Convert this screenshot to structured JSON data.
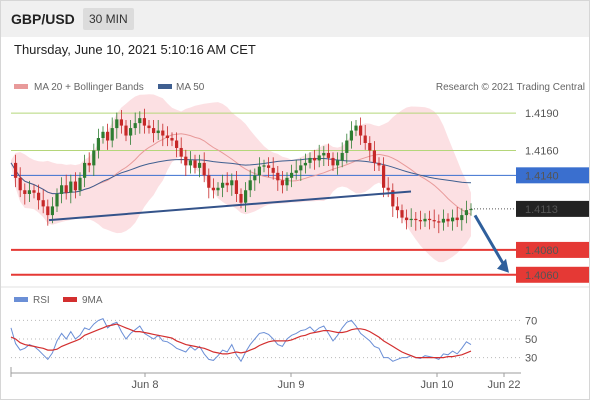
{
  "header": {
    "symbol": "GBP/USD",
    "interval": "30 MIN",
    "datetime": "Thursday, June 10, 2021 5:10:16 AM CET"
  },
  "colors": {
    "up": "#2e7d32",
    "down": "#c62828",
    "ma20": "#e89a9a",
    "bollinger_fill": "#fbd6d9",
    "ma50": "#3f5f90",
    "support_line": "#e53935",
    "resistance_line": "#b5d67a",
    "pivot_line": "#3a6fcf",
    "price_box": "#222222",
    "rsi": "#6b8fd6",
    "rsi_ma": "#d32f2f",
    "trendline": "#34538a",
    "forecast_arrow": "#2f5f9c"
  },
  "chart_data": [
    {
      "type": "line",
      "title": "GBP/USD 30 MIN",
      "legend": [
        {
          "name": "MA 20 + Bollinger Bands",
          "color": "#e89a9a"
        },
        {
          "name": "MA 50",
          "color": "#3f5f90"
        }
      ],
      "legend_placement": "top-left",
      "watermark": "Research © 2021 Trading Central",
      "ylim": [
        1.4055,
        1.4203
      ],
      "grid": false,
      "x_labels": [
        "Jun 8",
        "Jun 9",
        "Jun 10",
        "Jun 22"
      ],
      "price_levels": [
        {
          "value": 1.419,
          "label": "1.4190",
          "kind": "resistance"
        },
        {
          "value": 1.416,
          "label": "1.4160",
          "kind": "resistance"
        },
        {
          "value": 1.414,
          "label": "1.4140",
          "kind": "pivot"
        },
        {
          "value": 1.408,
          "label": "1.4080",
          "kind": "support"
        },
        {
          "value": 1.406,
          "label": "1.4060",
          "kind": "support"
        }
      ],
      "last_price": {
        "value": 1.4113,
        "label": "1.4113"
      },
      "series": [
        {
          "x_start": "Jun 7 22:00",
          "x_step_minutes": 30,
          "values": [
            1.415,
            1.4138,
            1.4128,
            1.4125,
            1.4128,
            1.4126,
            1.412,
            1.4115,
            1.4108,
            1.4115,
            1.4125,
            1.4132,
            1.4126,
            1.4135,
            1.4128,
            1.4138,
            1.415,
            1.4148,
            1.416,
            1.417,
            1.4175,
            1.4168,
            1.4178,
            1.4185,
            1.418,
            1.4172,
            1.4178,
            1.4182,
            1.4186,
            1.418,
            1.4178,
            1.4174,
            1.4176,
            1.4172,
            1.417,
            1.4168,
            1.4162,
            1.4155,
            1.4148,
            1.4152,
            1.4146,
            1.415,
            1.414,
            1.413,
            1.4128,
            1.413,
            1.4134,
            1.4132,
            1.4136,
            1.4125,
            1.4118,
            1.4128,
            1.4136,
            1.414,
            1.4147,
            1.4148,
            1.4146,
            1.4142,
            1.4136,
            1.4132,
            1.4138,
            1.4142,
            1.4144,
            1.4148,
            1.415,
            1.4154,
            1.4152,
            1.4156,
            1.4158,
            1.4154,
            1.4148,
            1.4152,
            1.4158,
            1.4168,
            1.4176,
            1.418,
            1.4172,
            1.4166,
            1.416,
            1.415,
            1.4148,
            1.413,
            1.4128,
            1.4115,
            1.4112,
            1.4106,
            1.4104,
            1.4105,
            1.4104,
            1.4103,
            1.4105,
            1.4104,
            1.4103,
            1.4102,
            1.4105,
            1.4103,
            1.4106,
            1.4104,
            1.4108,
            1.4112,
            1.4113
          ]
        }
      ],
      "annotations": {
        "trendline": {
          "from": {
            "x_label": "Jun 8",
            "y": 1.4104
          },
          "to": {
            "x_label": "Jun 10",
            "y": 1.4127
          }
        },
        "forecast_arrow": {
          "from_y": 1.4111,
          "to_y": 1.406
        }
      }
    },
    {
      "type": "line",
      "legend": [
        {
          "name": "RSI",
          "color": "#6b8fd6"
        },
        {
          "name": "9MA",
          "color": "#d32f2f"
        }
      ],
      "legend_placement": "top-left",
      "ylim": [
        22,
        78
      ],
      "ticks": [
        70,
        50,
        30
      ],
      "series": [
        {
          "name": "RSI",
          "values": [
            62,
            45,
            38,
            40,
            44,
            42,
            38,
            33,
            28,
            35,
            48,
            56,
            50,
            58,
            50,
            54,
            62,
            60,
            66,
            70,
            72,
            62,
            66,
            68,
            58,
            50,
            56,
            60,
            64,
            56,
            53,
            50,
            54,
            48,
            47,
            44,
            40,
            38,
            36,
            42,
            38,
            42,
            34,
            28,
            27,
            32,
            38,
            36,
            44,
            33,
            26,
            36,
            44,
            50,
            56,
            57,
            55,
            50,
            44,
            42,
            50,
            54,
            56,
            59,
            60,
            63,
            58,
            62,
            64,
            56,
            48,
            54,
            62,
            68,
            70,
            64,
            56,
            52,
            48,
            42,
            40,
            30,
            30,
            26,
            28,
            30,
            30,
            32,
            30,
            29,
            32,
            31,
            30,
            28,
            34,
            33,
            37,
            34,
            40,
            47,
            44
          ]
        },
        {
          "name": "9MA",
          "values": [
            52,
            50,
            46,
            44,
            43,
            42,
            41,
            40,
            38,
            38,
            39,
            42,
            44,
            46,
            48,
            50,
            54,
            56,
            58,
            60,
            62,
            64,
            65,
            66,
            64,
            62,
            60,
            58,
            58,
            57,
            56,
            55,
            54,
            53,
            52,
            51,
            48,
            46,
            44,
            43,
            42,
            41,
            40,
            38,
            36,
            35,
            34,
            34,
            35,
            36,
            35,
            36,
            38,
            40,
            43,
            45,
            47,
            48,
            48,
            48,
            48,
            49,
            51,
            53,
            54,
            56,
            57,
            58,
            59,
            59,
            58,
            57,
            57,
            58,
            60,
            61,
            61,
            60,
            58,
            55,
            52,
            48,
            45,
            42,
            39,
            36,
            34,
            32,
            30,
            30,
            30,
            30,
            30,
            30,
            30,
            31,
            31,
            32,
            33,
            35,
            37
          ]
        }
      ]
    }
  ]
}
